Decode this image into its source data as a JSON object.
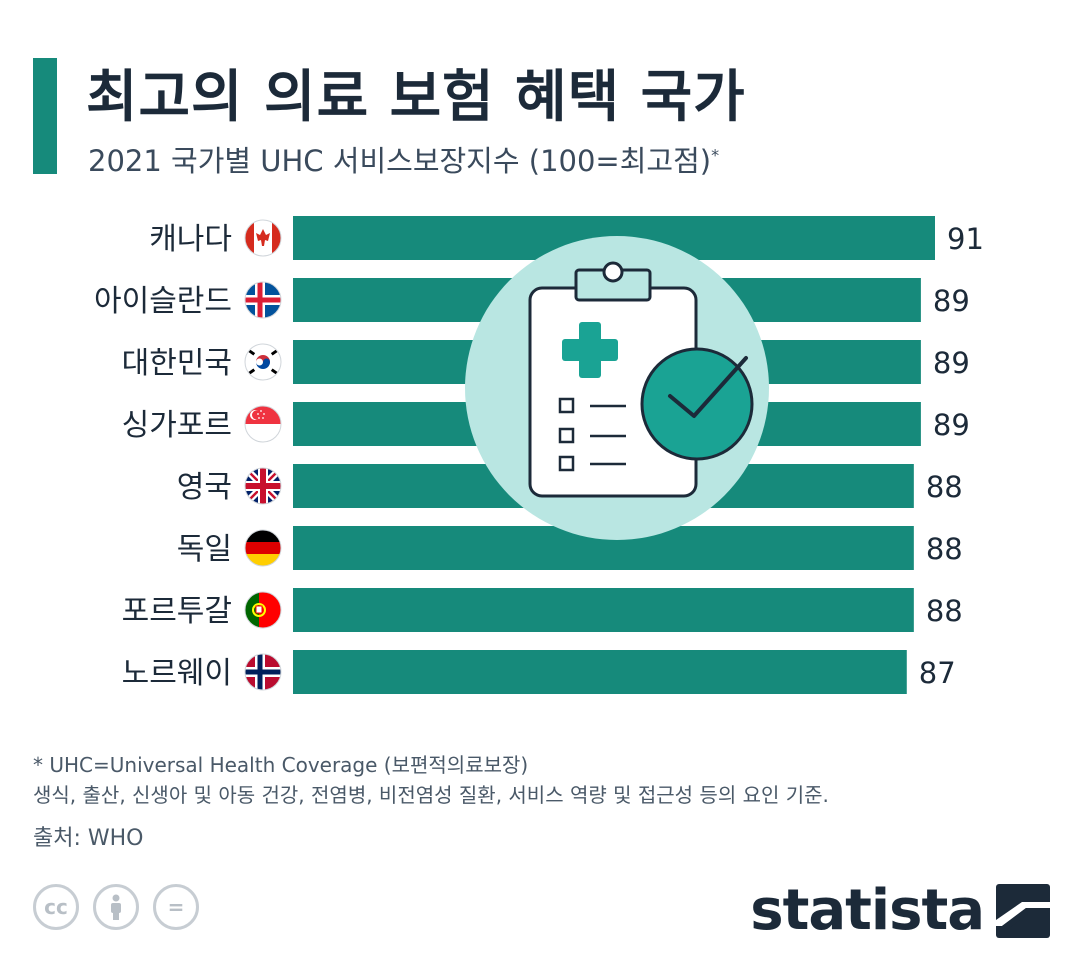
{
  "header": {
    "title": "최고의 의료 보험 혜택 국가",
    "subtitle": "2021 국가별 UHC 서비스보장지수 (100=최고점)",
    "subtitle_mark": "*"
  },
  "chart_data": {
    "type": "bar",
    "orientation": "horizontal",
    "title": "최고의 의료 보험 혜택 국가",
    "subtitle": "2021 국가별 UHC 서비스보장지수 (100=최고점)",
    "categories": [
      "캐나다",
      "아이슬란드",
      "대한민국",
      "싱가포르",
      "영국",
      "독일",
      "포르투갈",
      "노르웨이"
    ],
    "values": [
      91,
      89,
      89,
      89,
      88,
      88,
      88,
      87
    ],
    "xlim": [
      0,
      91
    ],
    "grid": false,
    "legend": "none",
    "bar_color": "#168a7b"
  },
  "flags": [
    "canada-flag-icon",
    "iceland-flag-icon",
    "south-korea-flag-icon",
    "singapore-flag-icon",
    "uk-flag-icon",
    "germany-flag-icon",
    "portugal-flag-icon",
    "norway-flag-icon"
  ],
  "footer": {
    "note1": "* UHC=Universal Health Coverage (보편적의료보장)",
    "note2": "생식, 출산, 신생아 및 아동 건강, 전염병, 비전염성 질환, 서비스 역량 및 접근성 등의 요인 기준.",
    "source": "출처: WHO",
    "cc_label": "cc",
    "equals_label": "=",
    "logo": "statista"
  },
  "colors": {
    "accent": "#168a7b",
    "text": "#1c2a39",
    "circle": "#b9e6e2",
    "check": "#1aa394"
  }
}
